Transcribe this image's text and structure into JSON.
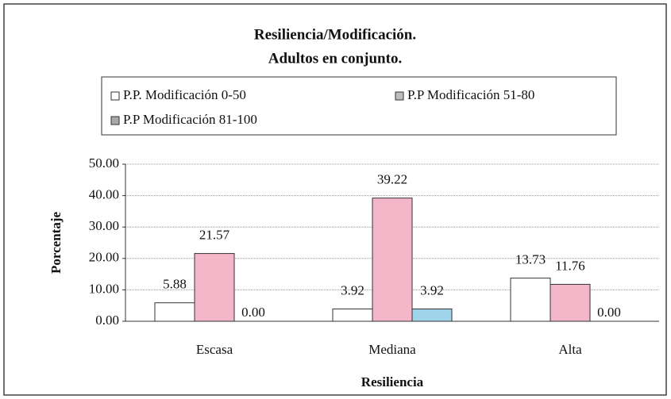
{
  "chart_data": {
    "type": "bar",
    "title": "Resiliencia/Modificación.",
    "subtitle": "Adultos en conjunto.",
    "x_label": "Resiliencia",
    "y_label": "Porcentaje",
    "categories": [
      "Escasa",
      "Mediana",
      "Alta"
    ],
    "series": [
      {
        "name": "P.P. Modificación  0-50",
        "color": "#ffffff",
        "legend_color": "#ffffff",
        "values": [
          5.88,
          3.92,
          13.73
        ],
        "value_labels": [
          "5.88",
          "3.92",
          "13.73"
        ]
      },
      {
        "name": "P.P Modificación 51-80",
        "color": "#f4b6c9",
        "legend_color": "#bdbdbd",
        "values": [
          21.57,
          39.22,
          11.76
        ],
        "value_labels": [
          "21.57",
          "39.22",
          "11.76"
        ]
      },
      {
        "name": "P.P Modificación 81-100",
        "color": "#9fd4ea",
        "legend_color": "#a8a8a8",
        "values": [
          0,
          3.92,
          0
        ],
        "value_labels": [
          "0.00",
          "3.92",
          "0.00"
        ]
      }
    ],
    "ylim": [
      0,
      50
    ],
    "yticks": [
      {
        "value": 0,
        "label": "0.00"
      },
      {
        "value": 10,
        "label": "10.00"
      },
      {
        "value": 20,
        "label": "20.00"
      },
      {
        "value": 30,
        "label": "30.00"
      },
      {
        "value": 40,
        "label": "40.00"
      },
      {
        "value": 50,
        "label": "50.00"
      }
    ],
    "grid": true
  }
}
